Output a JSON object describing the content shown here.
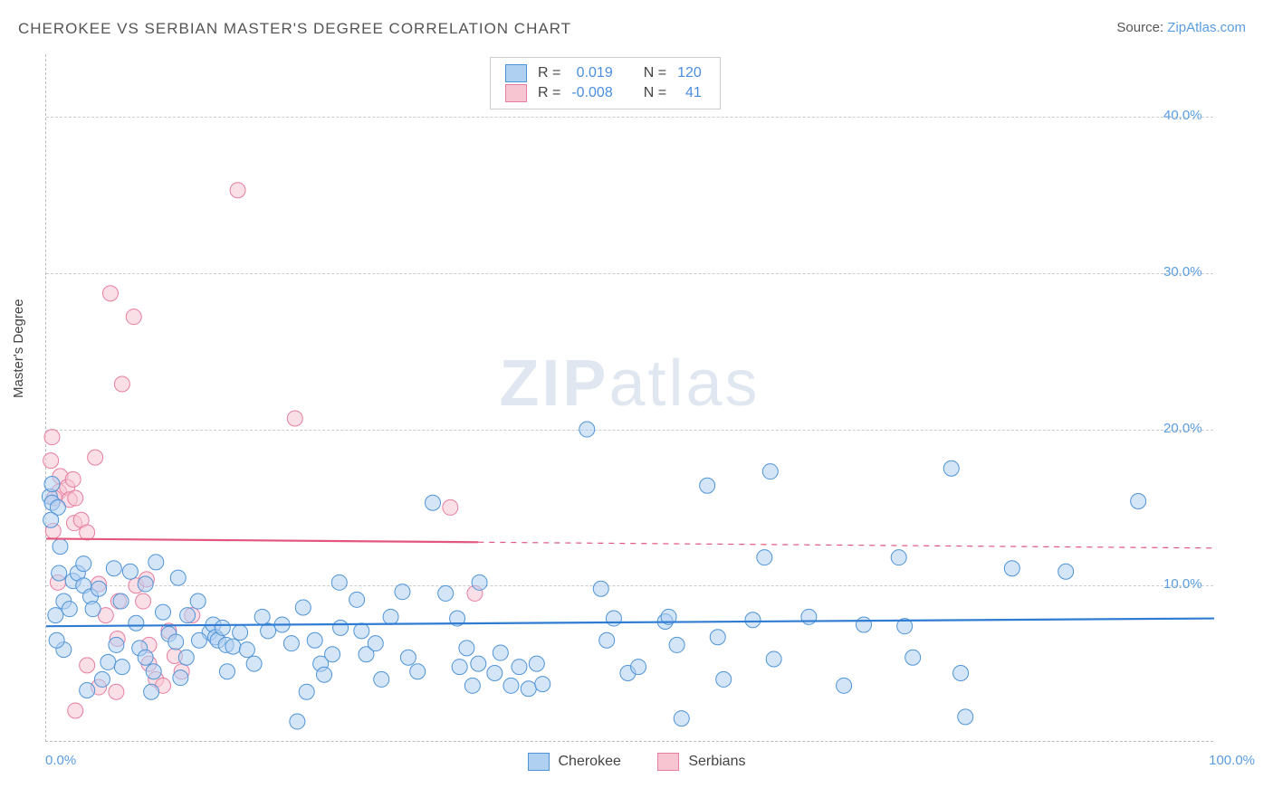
{
  "title": "CHEROKEE VS SERBIAN MASTER'S DEGREE CORRELATION CHART",
  "source": {
    "label": "Source: ",
    "site": "ZipAtlas.com"
  },
  "watermark": {
    "bold": "ZIP",
    "rest": "atlas"
  },
  "yaxis_title": "Master's Degree",
  "chart": {
    "type": "scatter",
    "xlim": [
      0,
      100
    ],
    "ylim": [
      0,
      44
    ],
    "x_axis_labels": {
      "min": "0.0%",
      "max": "100.0%"
    },
    "y_ticks": [
      {
        "v": 10,
        "label": "10.0%"
      },
      {
        "v": 20,
        "label": "20.0%"
      },
      {
        "v": 30,
        "label": "30.0%"
      },
      {
        "v": 40,
        "label": "40.0%"
      }
    ],
    "marker_radius": 8.5,
    "marker_stroke_width": 1,
    "trend_width_solid": 2.2,
    "trend_width_dash": 1.2,
    "series": [
      {
        "name": "Cherokee",
        "fill": "#b0d0f2",
        "stroke": "#4f94d6",
        "fill_opacity": 0.55,
        "trend": {
          "color": "#2f7cd2",
          "y0": 7.4,
          "y1": 7.9,
          "solid_to_x": 100
        },
        "R": "0.019",
        "N": "120",
        "points": [
          [
            1.2,
            12.5
          ],
          [
            0.3,
            15.7
          ],
          [
            0.5,
            15.3
          ],
          [
            0.5,
            16.5
          ],
          [
            1.0,
            15.0
          ],
          [
            0.4,
            14.2
          ],
          [
            1.1,
            10.8
          ],
          [
            2.3,
            10.3
          ],
          [
            2.7,
            10.8
          ],
          [
            3.2,
            10.0
          ],
          [
            3.8,
            9.3
          ],
          [
            4.5,
            9.8
          ],
          [
            4.0,
            8.5
          ],
          [
            1.5,
            9.0
          ],
          [
            0.8,
            8.1
          ],
          [
            2.0,
            8.5
          ],
          [
            3.2,
            11.4
          ],
          [
            5.8,
            11.1
          ],
          [
            7.2,
            10.9
          ],
          [
            6.4,
            9.0
          ],
          [
            9.4,
            11.5
          ],
          [
            8.5,
            10.1
          ],
          [
            10.0,
            8.3
          ],
          [
            11.3,
            10.5
          ],
          [
            12.1,
            8.1
          ],
          [
            13.0,
            9.0
          ],
          [
            14.0,
            7.0
          ],
          [
            14.3,
            7.5
          ],
          [
            14.5,
            6.7
          ],
          [
            14.7,
            6.5
          ],
          [
            15.1,
            7.3
          ],
          [
            15.4,
            6.2
          ],
          [
            6.0,
            6.2
          ],
          [
            5.3,
            5.1
          ],
          [
            7.7,
            7.6
          ],
          [
            8.0,
            6.0
          ],
          [
            8.5,
            5.4
          ],
          [
            10.5,
            6.9
          ],
          [
            11.1,
            6.4
          ],
          [
            13.1,
            6.5
          ],
          [
            12.0,
            5.4
          ],
          [
            11.5,
            4.1
          ],
          [
            9.2,
            4.5
          ],
          [
            16.0,
            6.1
          ],
          [
            16.6,
            7.0
          ],
          [
            17.2,
            5.9
          ],
          [
            17.8,
            5.0
          ],
          [
            18.5,
            8.0
          ],
          [
            19.0,
            7.1
          ],
          [
            20.2,
            7.5
          ],
          [
            21.0,
            6.3
          ],
          [
            22.0,
            8.6
          ],
          [
            23.0,
            6.5
          ],
          [
            23.5,
            5.0
          ],
          [
            23.8,
            4.3
          ],
          [
            24.5,
            5.6
          ],
          [
            25.1,
            10.2
          ],
          [
            25.2,
            7.3
          ],
          [
            26.6,
            9.1
          ],
          [
            27.0,
            7.1
          ],
          [
            27.4,
            5.6
          ],
          [
            28.2,
            6.3
          ],
          [
            28.7,
            4.0
          ],
          [
            29.5,
            8.0
          ],
          [
            30.5,
            9.6
          ],
          [
            31.0,
            5.4
          ],
          [
            31.8,
            4.5
          ],
          [
            33.1,
            15.3
          ],
          [
            34.2,
            9.5
          ],
          [
            35.2,
            7.9
          ],
          [
            35.4,
            4.8
          ],
          [
            36.0,
            6.0
          ],
          [
            36.5,
            3.6
          ],
          [
            37.0,
            5.0
          ],
          [
            37.1,
            10.2
          ],
          [
            38.4,
            4.4
          ],
          [
            38.9,
            5.7
          ],
          [
            39.8,
            3.6
          ],
          [
            40.5,
            4.8
          ],
          [
            41.3,
            3.4
          ],
          [
            42.0,
            5.0
          ],
          [
            42.5,
            3.7
          ],
          [
            46.3,
            20.0
          ],
          [
            47.5,
            9.8
          ],
          [
            48.0,
            6.5
          ],
          [
            48.6,
            7.9
          ],
          [
            49.8,
            4.4
          ],
          [
            50.7,
            4.8
          ],
          [
            53.0,
            7.7
          ],
          [
            53.3,
            8.0
          ],
          [
            54.0,
            6.2
          ],
          [
            54.4,
            1.5
          ],
          [
            56.6,
            16.4
          ],
          [
            57.5,
            6.7
          ],
          [
            58.0,
            4.0
          ],
          [
            60.5,
            7.8
          ],
          [
            61.5,
            11.8
          ],
          [
            62.0,
            17.3
          ],
          [
            62.3,
            5.3
          ],
          [
            65.3,
            8.0
          ],
          [
            68.3,
            3.6
          ],
          [
            70.0,
            7.5
          ],
          [
            73.0,
            11.8
          ],
          [
            73.5,
            7.4
          ],
          [
            74.2,
            5.4
          ],
          [
            77.5,
            17.5
          ],
          [
            78.3,
            4.4
          ],
          [
            78.7,
            1.6
          ],
          [
            82.7,
            11.1
          ],
          [
            87.3,
            10.9
          ],
          [
            93.5,
            15.4
          ],
          [
            21.5,
            1.3
          ],
          [
            22.3,
            3.2
          ],
          [
            15.5,
            4.5
          ],
          [
            9.0,
            3.2
          ],
          [
            4.8,
            4.0
          ],
          [
            3.5,
            3.3
          ],
          [
            6.5,
            4.8
          ],
          [
            1.5,
            5.9
          ],
          [
            0.9,
            6.5
          ]
        ]
      },
      {
        "name": "Serbians",
        "fill": "#f7c5d1",
        "stroke": "#e67ea0",
        "fill_opacity": 0.55,
        "trend": {
          "color": "#e2567f",
          "y0": 13.0,
          "y1": 12.4,
          "solid_to_x": 37
        },
        "R": "-0.008",
        "N": "41",
        "points": [
          [
            0.5,
            19.5
          ],
          [
            0.4,
            18.0
          ],
          [
            1.2,
            17.0
          ],
          [
            1.1,
            16.0
          ],
          [
            0.7,
            15.6
          ],
          [
            1.8,
            16.3
          ],
          [
            2.0,
            15.5
          ],
          [
            2.5,
            15.6
          ],
          [
            2.3,
            16.8
          ],
          [
            2.4,
            14.0
          ],
          [
            3.0,
            14.2
          ],
          [
            0.6,
            13.5
          ],
          [
            3.5,
            13.4
          ],
          [
            1.0,
            10.2
          ],
          [
            4.2,
            18.2
          ],
          [
            4.5,
            10.1
          ],
          [
            5.5,
            28.7
          ],
          [
            6.2,
            9.0
          ],
          [
            6.5,
            22.9
          ],
          [
            7.5,
            27.2
          ],
          [
            7.7,
            10.0
          ],
          [
            8.3,
            9.0
          ],
          [
            8.6,
            10.4
          ],
          [
            5.1,
            8.1
          ],
          [
            6.1,
            6.6
          ],
          [
            8.8,
            6.2
          ],
          [
            3.5,
            4.9
          ],
          [
            4.5,
            3.5
          ],
          [
            6.0,
            3.2
          ],
          [
            8.8,
            5.0
          ],
          [
            9.4,
            4.0
          ],
          [
            10.0,
            3.6
          ],
          [
            10.5,
            7.1
          ],
          [
            11.0,
            5.5
          ],
          [
            11.6,
            4.5
          ],
          [
            12.5,
            8.1
          ],
          [
            2.5,
            2.0
          ],
          [
            16.4,
            35.3
          ],
          [
            21.3,
            20.7
          ],
          [
            34.6,
            15.0
          ],
          [
            36.7,
            9.5
          ]
        ]
      }
    ]
  },
  "legend_top": {
    "R_label": "R =",
    "N_label": "N ="
  },
  "legend_bottom": [
    {
      "name": "Cherokee",
      "fill": "#b0d0f2",
      "stroke": "#4f94d6"
    },
    {
      "name": "Serbians",
      "fill": "#f7c5d1",
      "stroke": "#e67ea0"
    }
  ]
}
